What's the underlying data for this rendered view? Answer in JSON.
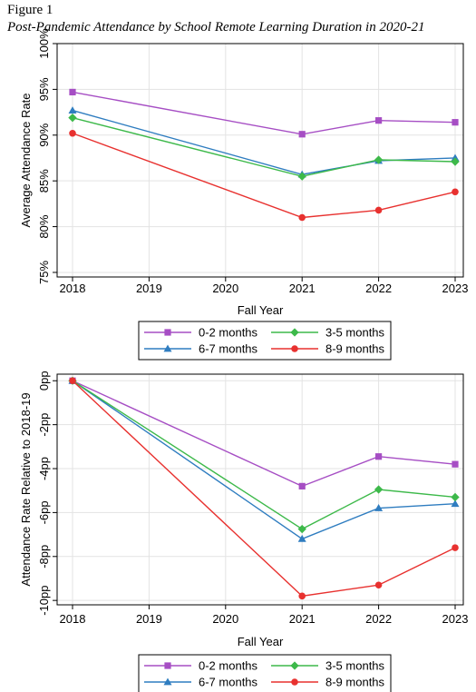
{
  "figure": {
    "label": "Figure 1",
    "title": "Post-Pandemic Attendance by School Remote Learning Duration in 2020-21"
  },
  "chart_data": [
    {
      "type": "line",
      "x": [
        2018,
        2021,
        2022,
        2023
      ],
      "xticks": [
        "2018",
        "2019",
        "2020",
        "2021",
        "2022",
        "2023"
      ],
      "xlim": [
        2018,
        2023
      ],
      "ylim": [
        0.745,
        1.0
      ],
      "yticks": [
        0.75,
        0.8,
        0.85,
        0.9,
        0.95,
        1.0
      ],
      "ytick_labels": [
        "75%",
        "80%",
        "85%",
        "90%",
        "95%",
        "100%"
      ],
      "xlabel": "Fall Year",
      "ylabel": "Average Attendance Rate",
      "grid": true,
      "legend": "bottom",
      "series": [
        {
          "name": "0-2 months",
          "color": "#a64ec4",
          "marker": "square",
          "values": [
            0.947,
            0.901,
            0.916,
            0.914
          ]
        },
        {
          "name": "3-5 months",
          "color": "#3db94a",
          "marker": "diamond",
          "values": [
            0.919,
            0.855,
            0.873,
            0.871
          ]
        },
        {
          "name": "6-7 months",
          "color": "#2f7dc0",
          "marker": "triangle",
          "values": [
            0.927,
            0.857,
            0.872,
            0.875
          ]
        },
        {
          "name": "8-9 months",
          "color": "#e8312f",
          "marker": "circle",
          "values": [
            0.902,
            0.81,
            0.818,
            0.838
          ]
        }
      ]
    },
    {
      "type": "line",
      "x": [
        2018,
        2021,
        2022,
        2023
      ],
      "xticks": [
        "2018",
        "2019",
        "2020",
        "2021",
        "2022",
        "2023"
      ],
      "xlim": [
        2018,
        2023
      ],
      "ylim": [
        -10.2,
        0.3
      ],
      "yticks": [
        0,
        -2,
        -4,
        -6,
        -8,
        -10
      ],
      "ytick_labels": [
        "0pp",
        "-2pp",
        "-4pp",
        "-6pp",
        "-8pp",
        "-10pp"
      ],
      "xlabel": "Fall Year",
      "ylabel": "Attendance Rate Relative to 2018-19",
      "grid": true,
      "legend": "bottom",
      "series": [
        {
          "name": "0-2 months",
          "color": "#a64ec4",
          "marker": "square",
          "values": [
            0,
            -4.8,
            -3.45,
            -3.8
          ]
        },
        {
          "name": "3-5 months",
          "color": "#3db94a",
          "marker": "diamond",
          "values": [
            0,
            -6.75,
            -4.95,
            -5.3
          ]
        },
        {
          "name": "6-7 months",
          "color": "#2f7dc0",
          "marker": "triangle",
          "values": [
            0,
            -7.2,
            -5.8,
            -5.6
          ]
        },
        {
          "name": "8-9 months",
          "color": "#e8312f",
          "marker": "circle",
          "values": [
            0,
            -9.8,
            -9.3,
            -7.6
          ]
        }
      ]
    }
  ]
}
